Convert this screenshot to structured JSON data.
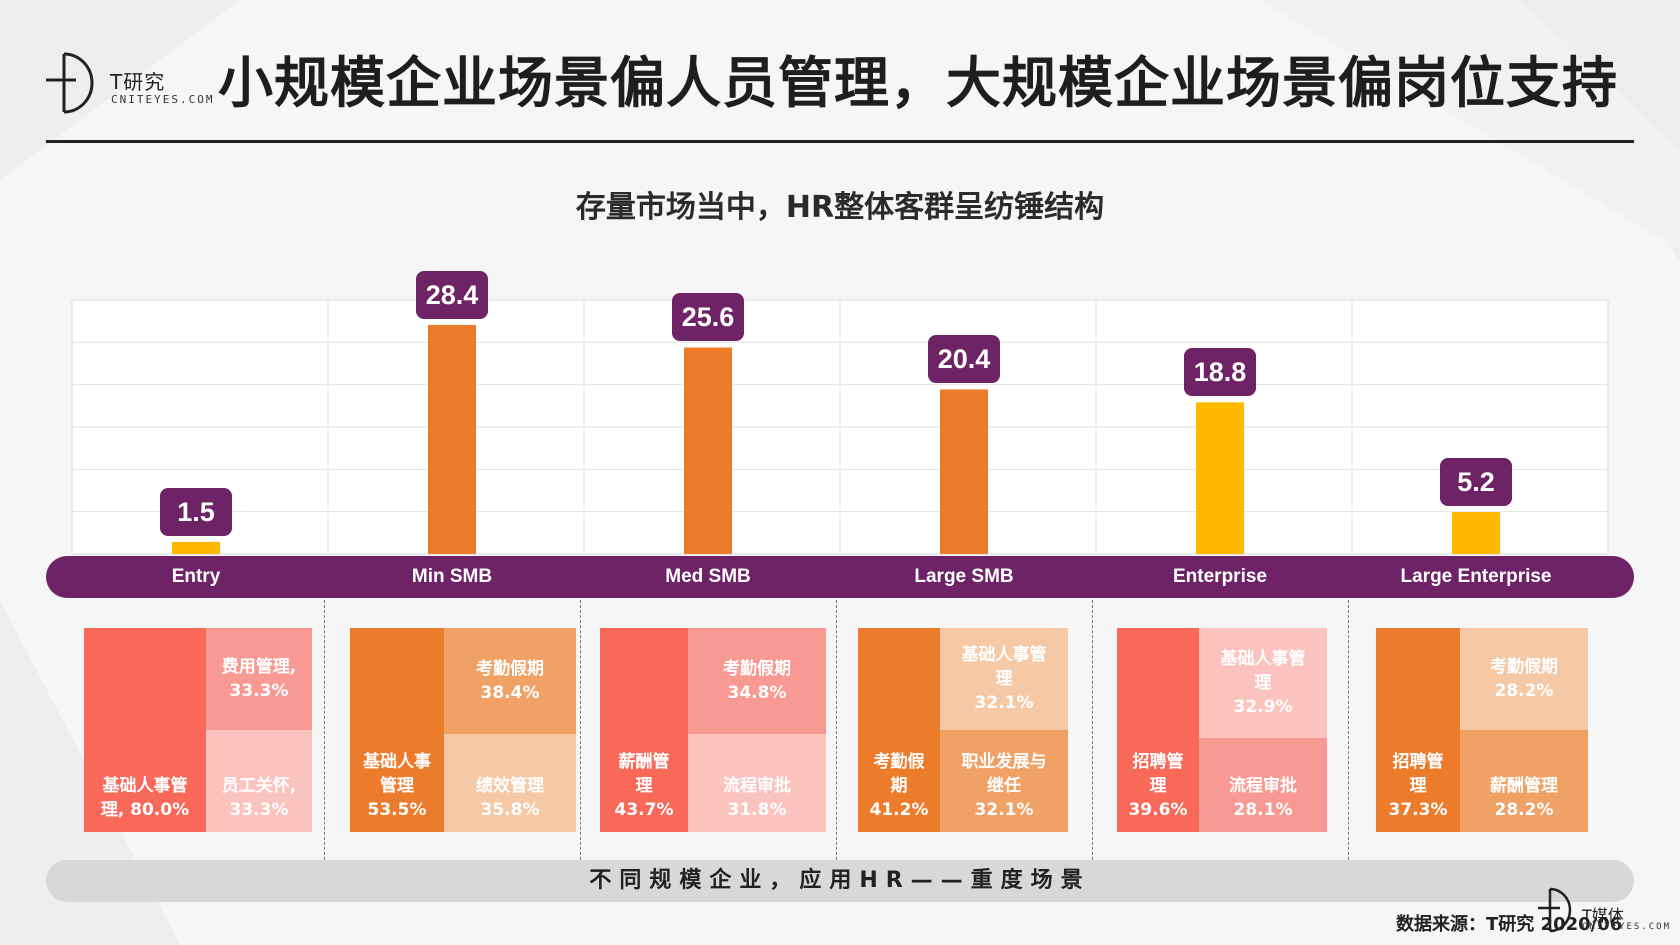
{
  "header": {
    "logo_cn": "T研究",
    "logo_en": "CNITEYES.COM",
    "title": "小规模企业场景偏人员管理，大规模企业场景偏岗位支持"
  },
  "subtitle": "存量市场当中，HR整体客群呈纺锤结构",
  "colors": {
    "purple": "#6e2366",
    "orange": "#ec7b2b",
    "gold": "#ffb800",
    "coral": "#f8695a",
    "pink": "#f89a93",
    "peach": "#f3a577"
  },
  "chart_data": {
    "type": "bar",
    "title": "存量市场当中，HR整体客群呈纺锤结构",
    "categories": [
      "Entry",
      "Min SMB",
      "Med SMB",
      "Large SMB",
      "Enterprise",
      "Large Enterprise"
    ],
    "values": [
      1.5,
      28.4,
      25.6,
      20.4,
      18.8,
      5.2
    ],
    "value_labels": [
      "1.5",
      "28.4",
      "25.6",
      "20.4",
      "18.8",
      "5.2"
    ],
    "bar_colors": [
      "#ffb800",
      "#ec7b2b",
      "#ec7b2b",
      "#ec7b2b",
      "#ffb800",
      "#ffb800"
    ],
    "ylim": [
      0,
      30
    ],
    "grid": true,
    "legend": "none"
  },
  "treemaps": [
    {
      "cells": [
        {
          "text": [
            "基础人事管",
            "理, 80.0%"
          ],
          "color": "#f8695a"
        },
        {
          "text": [
            "费用管理,",
            "33.3%"
          ],
          "color": "#f89a93"
        },
        {
          "text": [
            "员工关怀,",
            "33.3%"
          ],
          "color": "#fbc3bd"
        }
      ]
    },
    {
      "cells": [
        {
          "text": [
            "基础人事",
            "管理",
            "53.5%"
          ],
          "color": "#ec7b2b"
        },
        {
          "text": [
            "考勤假期",
            "38.4%"
          ],
          "color": "#f0a166"
        },
        {
          "text": [
            "绩效管理",
            "35.8%"
          ],
          "color": "#f5c9a6"
        }
      ]
    },
    {
      "cells": [
        {
          "text": [
            "薪酬管",
            "理",
            "43.7%"
          ],
          "color": "#f8695a"
        },
        {
          "text": [
            "考勤假期",
            "34.8%"
          ],
          "color": "#f89a93"
        },
        {
          "text": [
            "流程审批",
            "31.8%"
          ],
          "color": "#fbc3bd"
        }
      ]
    },
    {
      "cells": [
        {
          "text": [
            "考勤假",
            "期",
            "41.2%"
          ],
          "color": "#ec7b2b"
        },
        {
          "text": [
            "基础人事管",
            "理",
            "32.1%"
          ],
          "color": "#f5c9a6"
        },
        {
          "text": [
            "职业发展与",
            "继任",
            "32.1%"
          ],
          "color": "#f0a166"
        }
      ]
    },
    {
      "cells": [
        {
          "text": [
            "招聘管",
            "理",
            "39.6%"
          ],
          "color": "#f8695a"
        },
        {
          "text": [
            "基础人事管",
            "理",
            "32.9%"
          ],
          "color": "#fbc3bd"
        },
        {
          "text": [
            "流程审批",
            "28.1%"
          ],
          "color": "#f89a93"
        }
      ]
    },
    {
      "cells": [
        {
          "text": [
            "招聘管",
            "理",
            "37.3%"
          ],
          "color": "#ec7b2b"
        },
        {
          "text": [
            "考勤假期",
            "28.2%"
          ],
          "color": "#f5c9a6"
        },
        {
          "text": [
            "薪酬管理",
            "28.2%"
          ],
          "color": "#f0a166"
        }
      ]
    }
  ],
  "footer": {
    "band_text": "不同规模企业，应用HR——重度场景",
    "source": "数据来源：T研究 2020/06",
    "tmedia_cn": "T媒体",
    "tmedia_en": "CNITEYES.COM"
  }
}
